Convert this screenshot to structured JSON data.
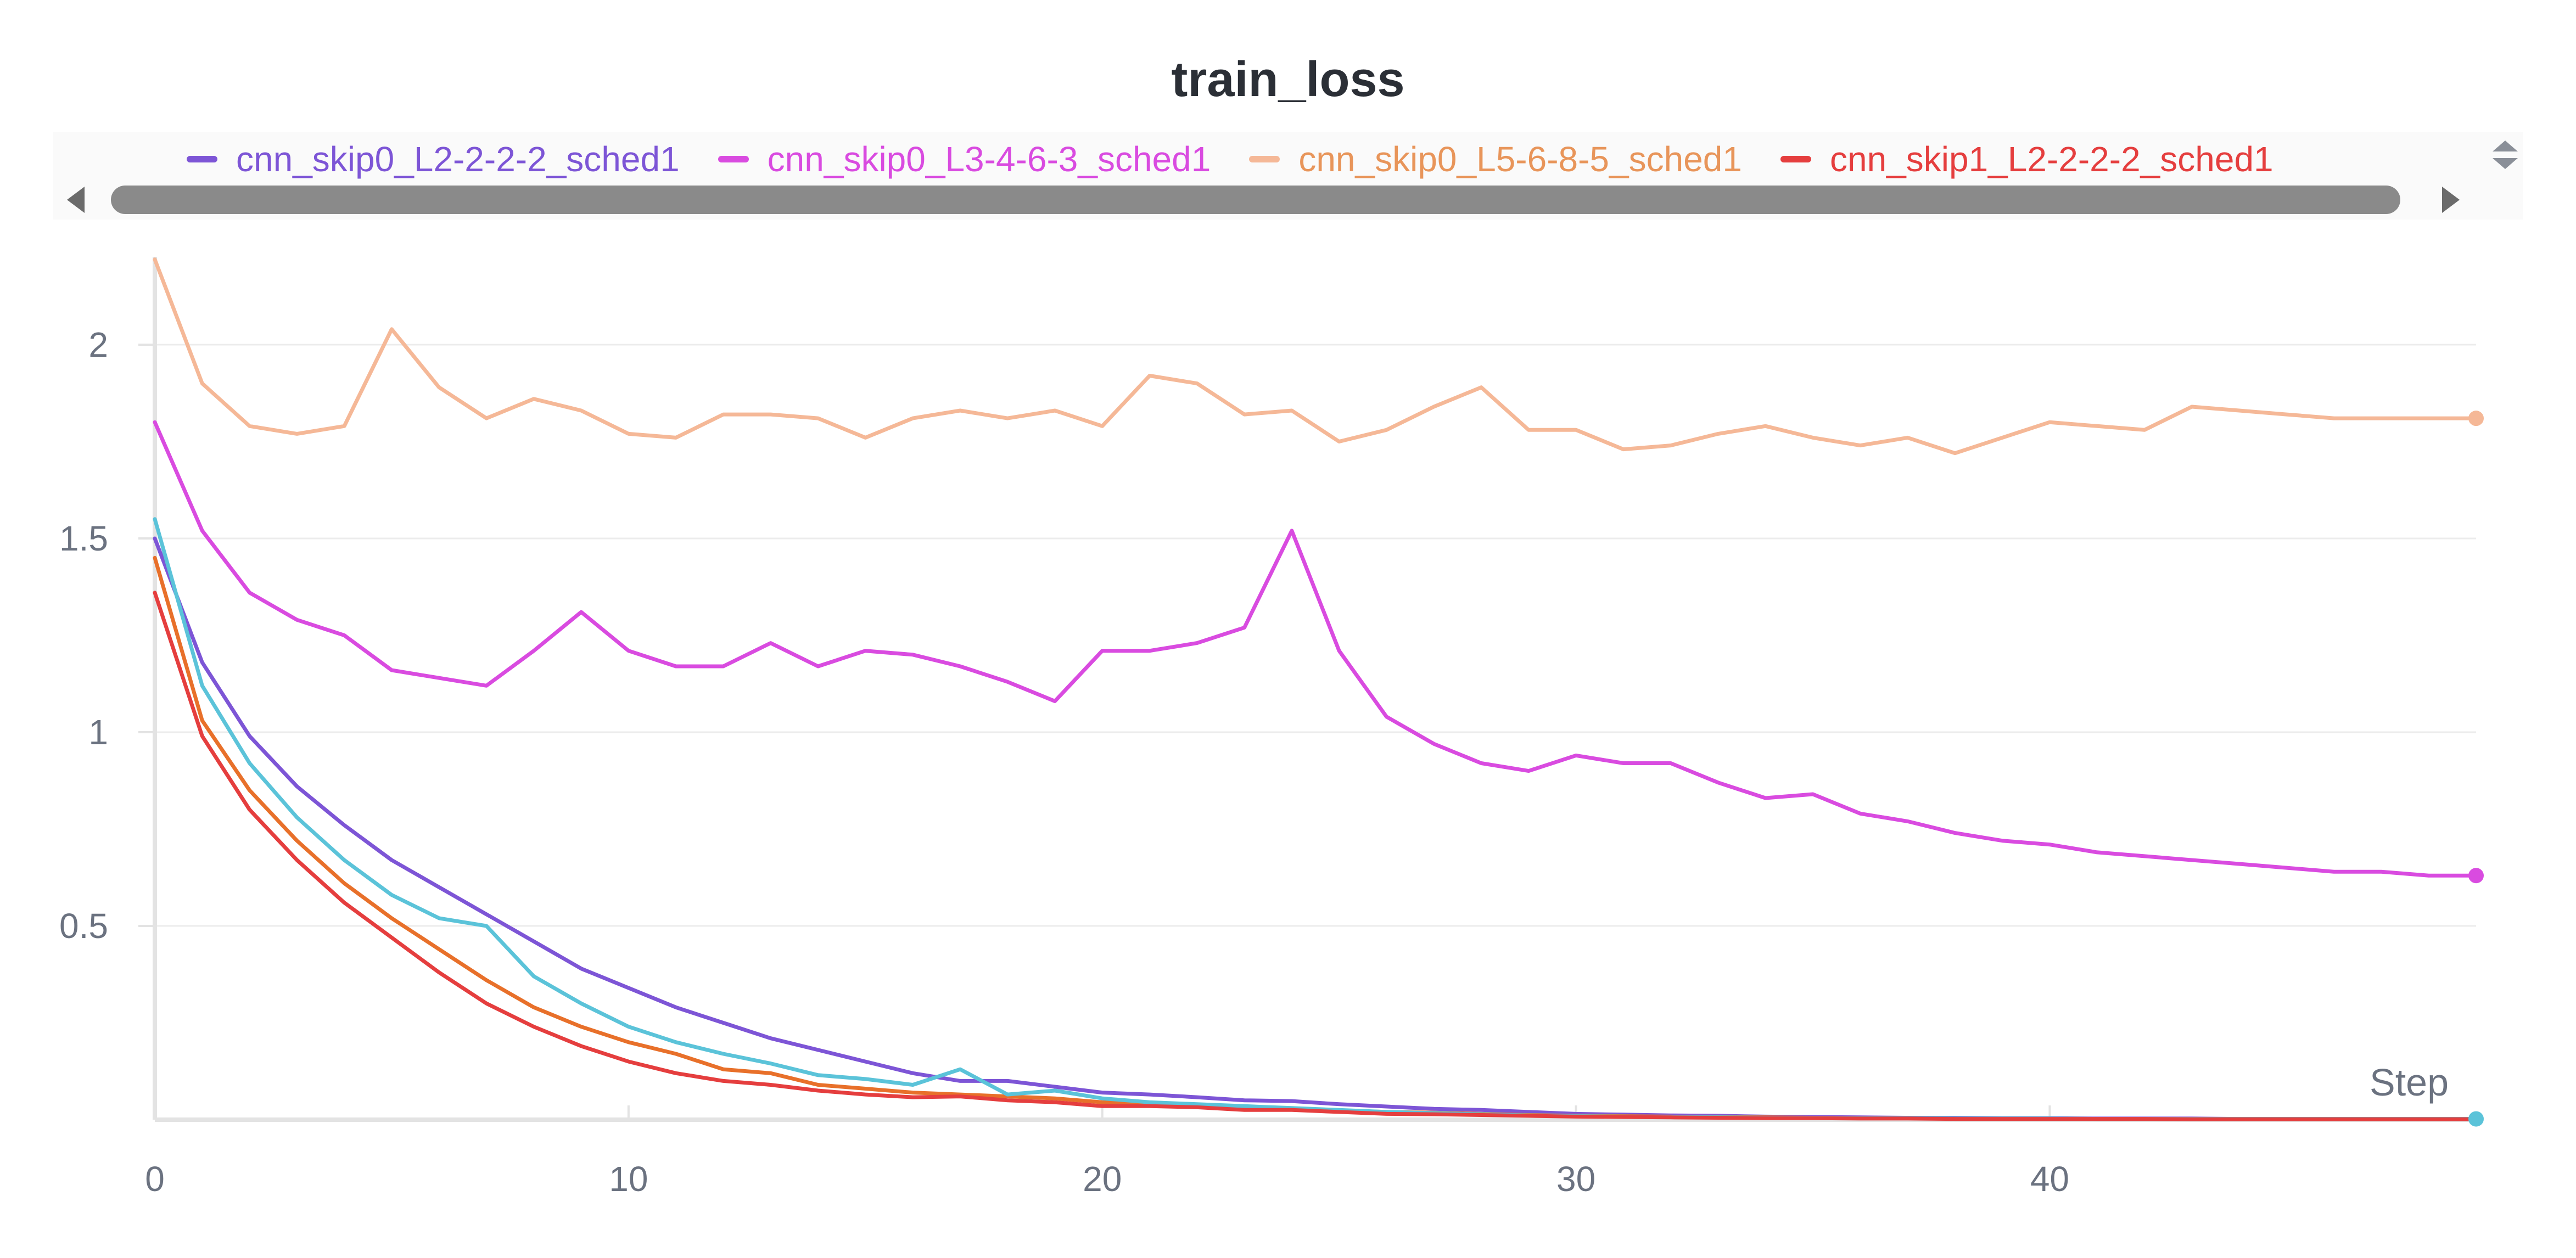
{
  "chart_data": {
    "type": "line",
    "title": "train_loss",
    "xlabel": "Step",
    "ylabel": "",
    "xlim": [
      0,
      49
    ],
    "ylim": [
      0,
      2.2
    ],
    "x_ticks": [
      0,
      10,
      20,
      30,
      40
    ],
    "y_ticks": [
      0.5,
      1,
      1.5,
      2
    ],
    "grid": true,
    "legend_position": "top",
    "series": [
      {
        "name": "cnn_skip0_L2-2-2-2_sched1",
        "color": "#7d55d6",
        "values": [
          1.5,
          1.18,
          0.99,
          0.86,
          0.76,
          0.67,
          0.6,
          0.53,
          0.46,
          0.39,
          0.34,
          0.29,
          0.25,
          0.21,
          0.18,
          0.15,
          0.12,
          0.1,
          0.1,
          0.085,
          0.07,
          0.065,
          0.058,
          0.05,
          0.048,
          0.04,
          0.034,
          0.028,
          0.025,
          0.02,
          0.015,
          0.013,
          0.011,
          0.01,
          0.008,
          0.007,
          0.006,
          0.005,
          0.005,
          0.004,
          0.004,
          0.003,
          0.003,
          0.003,
          0.002,
          0.002,
          0.002,
          0.002,
          0.002,
          0.002
        ]
      },
      {
        "name": "cnn_skip0_L3-4-6-3_sched1",
        "color": "#d94be0",
        "values": [
          1.8,
          1.52,
          1.36,
          1.29,
          1.25,
          1.16,
          1.14,
          1.12,
          1.21,
          1.31,
          1.21,
          1.17,
          1.17,
          1.23,
          1.17,
          1.21,
          1.2,
          1.17,
          1.13,
          1.08,
          1.21,
          1.21,
          1.23,
          1.27,
          1.52,
          1.21,
          1.04,
          0.97,
          0.92,
          0.9,
          0.94,
          0.92,
          0.92,
          0.87,
          0.83,
          0.84,
          0.79,
          0.77,
          0.74,
          0.72,
          0.71,
          0.69,
          0.68,
          0.67,
          0.66,
          0.65,
          0.64,
          0.64,
          0.63,
          0.63
        ]
      },
      {
        "name": "cnn_skip0_L5-6-8-5_sched1",
        "color": "#f5b897",
        "values": [
          2.22,
          1.9,
          1.79,
          1.77,
          1.79,
          2.04,
          1.89,
          1.81,
          1.86,
          1.83,
          1.77,
          1.76,
          1.82,
          1.82,
          1.81,
          1.76,
          1.81,
          1.83,
          1.81,
          1.83,
          1.79,
          1.92,
          1.9,
          1.82,
          1.83,
          1.75,
          1.78,
          1.84,
          1.89,
          1.78,
          1.78,
          1.73,
          1.74,
          1.77,
          1.79,
          1.76,
          1.74,
          1.76,
          1.72,
          1.76,
          1.8,
          1.79,
          1.78,
          1.84,
          1.83,
          1.82,
          1.81,
          1.81,
          1.81,
          1.81
        ]
      },
      {
        "name": "cnn_skip1_L2-2-2-2_sched1",
        "color": "#e53e3e",
        "values": [
          1.36,
          0.99,
          0.8,
          0.67,
          0.56,
          0.47,
          0.38,
          0.3,
          0.24,
          0.19,
          0.15,
          0.12,
          0.1,
          0.09,
          0.075,
          0.065,
          0.058,
          0.06,
          0.05,
          0.045,
          0.035,
          0.035,
          0.032,
          0.025,
          0.025,
          0.02,
          0.015,
          0.014,
          0.012,
          0.01,
          0.008,
          0.007,
          0.006,
          0.005,
          0.004,
          0.004,
          0.003,
          0.003,
          0.002,
          0.002,
          0.002,
          0.002,
          0.002,
          0.001,
          0.001,
          0.001,
          0.001,
          0.001,
          0.001,
          0.001
        ]
      },
      {
        "name": "",
        "color": "#e8702a",
        "values": [
          1.45,
          1.03,
          0.85,
          0.72,
          0.61,
          0.52,
          0.44,
          0.36,
          0.29,
          0.24,
          0.2,
          0.17,
          0.13,
          0.12,
          0.09,
          0.08,
          0.07,
          0.065,
          0.06,
          0.055,
          0.045,
          0.04,
          0.035,
          0.03,
          0.028,
          0.024,
          0.02,
          0.018,
          0.015,
          0.012,
          0.01,
          0.009,
          0.008,
          0.007,
          0.006,
          0.005,
          0.004,
          0.004,
          0.003,
          0.003,
          0.003,
          0.002,
          0.002,
          0.002,
          0.002,
          0.002,
          0.002,
          0.002,
          0.002,
          0.002
        ]
      },
      {
        "name": "",
        "color": "#5bc3d9",
        "values": [
          1.55,
          1.12,
          0.92,
          0.78,
          0.67,
          0.58,
          0.52,
          0.5,
          0.37,
          0.3,
          0.24,
          0.2,
          0.17,
          0.145,
          0.115,
          0.105,
          0.09,
          0.13,
          0.065,
          0.075,
          0.055,
          0.045,
          0.04,
          0.035,
          0.03,
          0.025,
          0.02,
          0.017,
          0.014,
          0.011,
          0.009,
          0.008,
          0.007,
          0.006,
          0.005,
          0.005,
          0.004,
          0.004,
          0.003,
          0.003,
          0.003,
          0.002,
          0.002,
          0.002,
          0.002,
          0.002,
          0.002,
          0.002,
          0.002,
          0.002
        ]
      }
    ]
  }
}
